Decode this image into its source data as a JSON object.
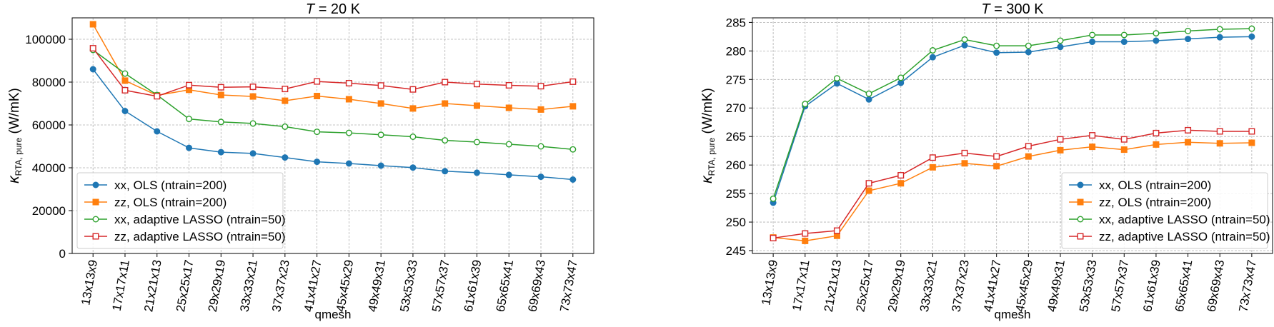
{
  "chart_data": [
    {
      "type": "line",
      "title_prefix": "T",
      "title_suffix": " = 20 K",
      "xlabel": "qmesh",
      "ylabel_main": "κ",
      "ylabel_sub": "RTA, pure",
      "ylabel_unit": " (W/mK)",
      "categories": [
        "13x13x9",
        "17x17x11",
        "21x21x13",
        "25x25x17",
        "29x29x19",
        "33x33x21",
        "37x37x23",
        "41x41x27",
        "45x45x29",
        "49x49x31",
        "53x53x33",
        "57x57x37",
        "61x61x39",
        "65x65x41",
        "69x69x43",
        "73x73x47"
      ],
      "ylim": [
        0,
        110000
      ],
      "yticks": [
        0,
        20000,
        40000,
        60000,
        80000,
        100000
      ],
      "grid": true,
      "legend_position": "lower-left",
      "series": [
        {
          "name": "xx, OLS (ntrain=200)",
          "color": "#1f77b4",
          "marker": "circle-filled",
          "values": [
            86000,
            66500,
            57000,
            49300,
            47300,
            46700,
            44800,
            42800,
            42000,
            41000,
            40100,
            38400,
            37700,
            36700,
            35800,
            34500
          ]
        },
        {
          "name": "zz, OLS (ntrain=200)",
          "color": "#ff7f0e",
          "marker": "square-filled",
          "values": [
            107000,
            80700,
            73800,
            76400,
            74000,
            73300,
            71300,
            73500,
            72000,
            70000,
            67700,
            70000,
            69000,
            68000,
            67200,
            68700
          ]
        },
        {
          "name": "xx, adaptive LASSO (ntrain=50)",
          "color": "#2ca02c",
          "marker": "circle-open",
          "values": [
            95000,
            84000,
            74000,
            62800,
            61400,
            60700,
            59200,
            56800,
            56300,
            55400,
            54500,
            52800,
            52000,
            51000,
            50000,
            48600
          ]
        },
        {
          "name": "zz, adaptive LASSO (ntrain=50)",
          "color": "#d62728",
          "marker": "square-open",
          "values": [
            95800,
            76200,
            73400,
            78600,
            77600,
            77800,
            76800,
            80300,
            79500,
            78400,
            76600,
            80000,
            79100,
            78500,
            78100,
            80200
          ]
        }
      ]
    },
    {
      "type": "line",
      "title_prefix": "T",
      "title_suffix": " = 300 K",
      "xlabel": "qmesh",
      "ylabel_main": "κ",
      "ylabel_sub": "RTA, pure",
      "ylabel_unit": " (W/mK)",
      "categories": [
        "13x13x9",
        "17x17x11",
        "21x21x13",
        "25x25x17",
        "29x29x19",
        "33x33x21",
        "37x37x23",
        "41x41x27",
        "45x45x29",
        "49x49x31",
        "53x53x33",
        "57x57x37",
        "61x61x39",
        "65x65x41",
        "69x69x43",
        "73x73x47"
      ],
      "ylim": [
        244.5,
        285.8
      ],
      "yticks": [
        245,
        250,
        255,
        260,
        265,
        270,
        275,
        280,
        285
      ],
      "grid": true,
      "legend_position": "lower-right",
      "series": [
        {
          "name": "xx, OLS (ntrain=200)",
          "color": "#1f77b4",
          "marker": "circle-filled",
          "values": [
            253.4,
            270.3,
            274.3,
            271.5,
            274.4,
            278.9,
            281.0,
            279.7,
            279.8,
            280.7,
            281.6,
            281.6,
            281.8,
            282.1,
            282.4,
            282.5
          ]
        },
        {
          "name": "zz, OLS (ntrain=200)",
          "color": "#ff7f0e",
          "marker": "square-filled",
          "values": [
            247.3,
            246.7,
            247.6,
            255.5,
            256.8,
            259.6,
            260.3,
            259.8,
            261.5,
            262.6,
            263.2,
            262.7,
            263.6,
            264.0,
            263.8,
            263.9
          ]
        },
        {
          "name": "xx, adaptive LASSO (ntrain=50)",
          "color": "#2ca02c",
          "marker": "circle-open",
          "values": [
            254.1,
            270.7,
            275.2,
            272.5,
            275.3,
            280.1,
            282.0,
            280.9,
            280.9,
            281.8,
            282.8,
            282.8,
            283.1,
            283.5,
            283.8,
            283.9
          ]
        },
        {
          "name": "zz, adaptive LASSO (ntrain=50)",
          "color": "#d62728",
          "marker": "square-open",
          "values": [
            247.2,
            248.0,
            248.5,
            256.8,
            258.2,
            261.3,
            262.1,
            261.5,
            263.3,
            264.5,
            265.2,
            264.5,
            265.6,
            266.1,
            265.9,
            265.9
          ]
        }
      ]
    }
  ]
}
